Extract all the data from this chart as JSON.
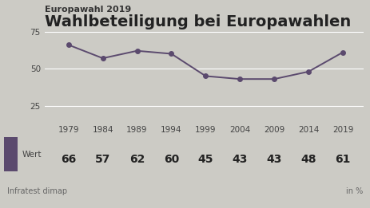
{
  "supertitle": "Europawahl 2019",
  "title": "Wahlbeteiligung bei Europawahlen",
  "years": [
    1979,
    1984,
    1989,
    1994,
    1999,
    2004,
    2009,
    2014,
    2019
  ],
  "values": [
    66,
    57,
    62,
    60,
    45,
    43,
    43,
    48,
    61
  ],
  "line_color": "#5b4a6e",
  "marker_color": "#5b4a6e",
  "bg_color": "#cccbc5",
  "legend_bg_color": "#ffffff",
  "yticks": [
    25,
    50,
    75
  ],
  "ylim": [
    15,
    85
  ],
  "xlim": [
    1975.5,
    2022
  ],
  "legend_label": "Wert",
  "source": "Infratest dimap",
  "unit": "in %",
  "legend_box_color": "#5b4a6e",
  "supertitle_fontsize": 8,
  "title_fontsize": 14,
  "axis_label_fontsize": 7.5,
  "value_fontsize": 10,
  "source_fontsize": 7
}
